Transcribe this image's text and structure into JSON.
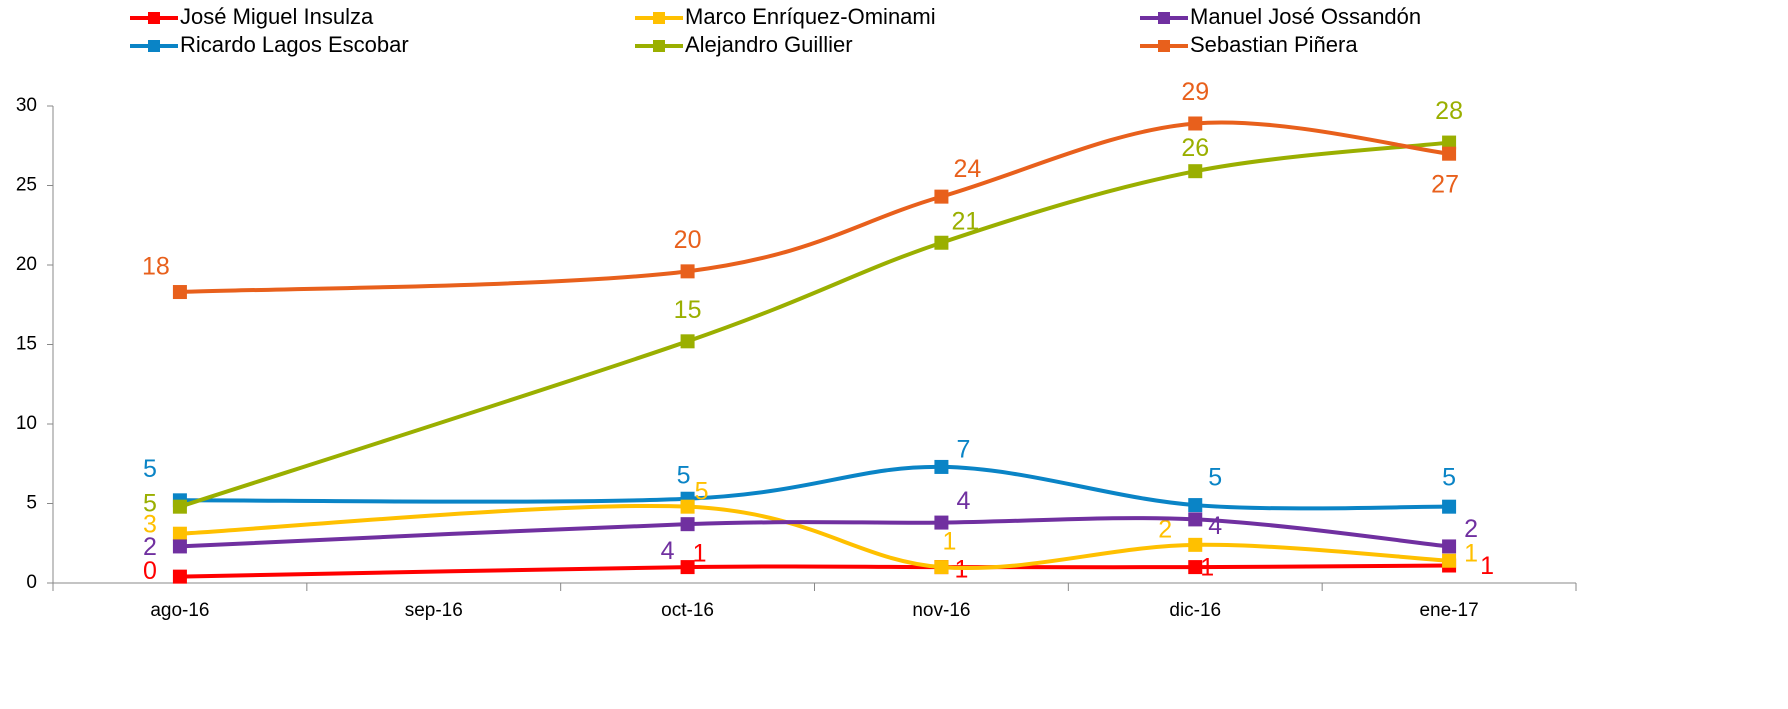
{
  "chart_data": {
    "type": "line",
    "span_gaps": true,
    "smooth": true,
    "legend": "top",
    "categories": [
      "ago-16",
      "sep-16",
      "oct-16",
      "nov-16",
      "dic-16",
      "ene-17"
    ],
    "ylim": [
      0,
      30
    ],
    "yticks": [
      0,
      5,
      10,
      15,
      20,
      25,
      30
    ],
    "series": [
      {
        "name": "José Miguel Insulza",
        "color": "#ff0000",
        "values": [
          0.4,
          null,
          1.0,
          1.0,
          1.0,
          1.1
        ],
        "value_labels": [
          "0",
          null,
          "1",
          "1",
          "1",
          "1"
        ]
      },
      {
        "name": "Ricardo Lagos Escobar",
        "color": "#0a84c6",
        "values": [
          5.2,
          null,
          5.3,
          7.3,
          4.9,
          4.8
        ],
        "value_labels": [
          "5",
          null,
          "5",
          "7",
          "5",
          "5"
        ]
      },
      {
        "name": "Marco Enríquez-Ominami",
        "color": "#ffc000",
        "values": [
          3.1,
          null,
          4.8,
          1.0,
          2.4,
          1.4
        ],
        "value_labels": [
          "3",
          null,
          "5",
          "1",
          "2",
          "1"
        ]
      },
      {
        "name": "Alejandro Guillier",
        "color": "#9aaf00",
        "values": [
          4.8,
          null,
          15.2,
          21.4,
          25.9,
          27.7
        ],
        "value_labels": [
          "5",
          null,
          "15",
          "21",
          "26",
          "28"
        ]
      },
      {
        "name": "Manuel José Ossandón",
        "color": "#7030a0",
        "values": [
          2.3,
          null,
          3.7,
          3.8,
          4.0,
          2.3
        ],
        "value_labels": [
          "2",
          null,
          "4",
          "4",
          "4",
          "2"
        ]
      },
      {
        "name": "Sebastian Piñera",
        "color": "#e8601c",
        "values": [
          18.3,
          null,
          19.6,
          24.3,
          28.9,
          27.0
        ],
        "value_labels": [
          "18",
          null,
          "20",
          "24",
          "29",
          "27"
        ]
      }
    ]
  }
}
